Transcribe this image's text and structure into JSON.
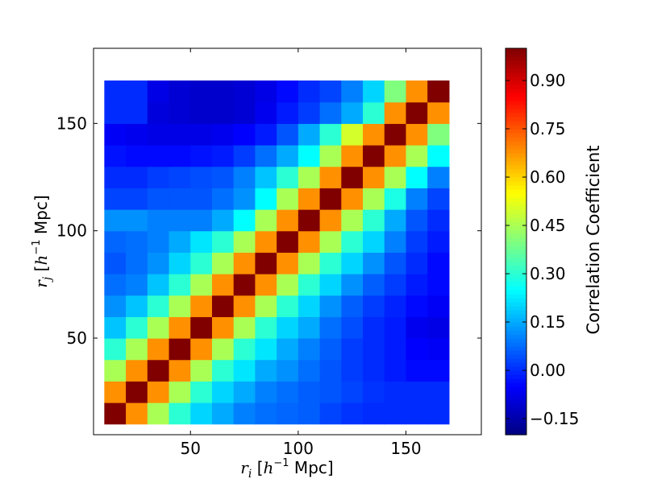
{
  "chart_data": {
    "type": "heatmap",
    "x": [
      15,
      25,
      35,
      45,
      55,
      65,
      75,
      85,
      95,
      105,
      115,
      125,
      135,
      145,
      155,
      165
    ],
    "y": [
      15,
      25,
      35,
      45,
      55,
      65,
      75,
      85,
      95,
      105,
      115,
      125,
      135,
      145,
      155,
      165
    ],
    "xlim": [
      5,
      185
    ],
    "ylim": [
      5,
      185
    ],
    "xlabel": {
      "var": "r",
      "sub": "i",
      "open": " [",
      "h": "h",
      "exp": "−1",
      "unit": " Mpc]"
    },
    "ylabel": {
      "var": "r",
      "sub": "j",
      "open": " [",
      "h": "h",
      "exp": "−1",
      "unit": " Mpc]"
    },
    "xticks": [
      {
        "value": 50,
        "label": "50"
      },
      {
        "value": 100,
        "label": "100"
      },
      {
        "value": 150,
        "label": "150"
      }
    ],
    "yticks": [
      {
        "value": 50,
        "label": "50"
      },
      {
        "value": 100,
        "label": "100"
      },
      {
        "value": 150,
        "label": "150"
      }
    ],
    "colorbar": {
      "label": "Correlation Coefficient",
      "range": [
        -0.2,
        1.0
      ],
      "colormap": "jet",
      "ticks": [
        {
          "value": -0.15,
          "label": "−0.15"
        },
        {
          "value": 0.0,
          "label": "0.00"
        },
        {
          "value": 0.15,
          "label": "0.15"
        },
        {
          "value": 0.3,
          "label": "0.30"
        },
        {
          "value": 0.45,
          "label": "0.45"
        },
        {
          "value": 0.6,
          "label": "0.60"
        },
        {
          "value": 0.75,
          "label": "0.75"
        },
        {
          "value": 0.9,
          "label": "0.90"
        }
      ]
    },
    "z": [
      [
        1.0,
        0.68,
        0.45,
        0.3,
        0.2,
        0.15,
        0.1,
        0.08,
        0.07,
        0.06,
        0.03,
        0.01,
        0.0,
        0.0,
        0.0,
        0.0
      ],
      [
        0.68,
        1.0,
        0.68,
        0.45,
        0.3,
        0.2,
        0.15,
        0.1,
        0.08,
        0.06,
        0.05,
        0.03,
        0.01,
        0.0,
        0.0,
        0.0
      ],
      [
        0.45,
        0.68,
        1.0,
        0.68,
        0.45,
        0.3,
        0.22,
        0.15,
        0.12,
        0.08,
        0.05,
        0.02,
        0.0,
        -0.02,
        -0.04,
        -0.04
      ],
      [
        0.3,
        0.45,
        0.68,
        1.0,
        0.68,
        0.45,
        0.3,
        0.22,
        0.15,
        0.1,
        0.06,
        0.02,
        0.0,
        -0.02,
        -0.05,
        -0.06
      ],
      [
        0.18,
        0.3,
        0.45,
        0.68,
        1.0,
        0.68,
        0.45,
        0.3,
        0.2,
        0.15,
        0.08,
        0.04,
        0.0,
        -0.02,
        -0.07,
        -0.08
      ],
      [
        0.12,
        0.18,
        0.3,
        0.45,
        0.68,
        1.0,
        0.68,
        0.45,
        0.3,
        0.2,
        0.12,
        0.06,
        0.02,
        -0.01,
        -0.04,
        -0.06
      ],
      [
        0.08,
        0.1,
        0.18,
        0.3,
        0.45,
        0.68,
        1.0,
        0.68,
        0.45,
        0.3,
        0.2,
        0.12,
        0.06,
        0.02,
        -0.02,
        -0.04
      ],
      [
        0.05,
        0.08,
        0.12,
        0.2,
        0.3,
        0.45,
        0.68,
        1.0,
        0.68,
        0.45,
        0.3,
        0.2,
        0.12,
        0.05,
        0.0,
        -0.04
      ],
      [
        0.07,
        0.08,
        0.1,
        0.15,
        0.22,
        0.3,
        0.45,
        0.68,
        1.0,
        0.68,
        0.45,
        0.3,
        0.2,
        0.1,
        0.02,
        -0.02
      ],
      [
        0.12,
        0.12,
        0.1,
        0.1,
        0.1,
        0.15,
        0.25,
        0.45,
        0.68,
        1.0,
        0.68,
        0.45,
        0.3,
        0.15,
        0.05,
        0.0
      ],
      [
        0.03,
        0.03,
        0.05,
        0.05,
        0.05,
        0.08,
        0.12,
        0.25,
        0.45,
        0.68,
        1.0,
        0.68,
        0.45,
        0.28,
        0.1,
        0.03
      ],
      [
        0.0,
        0.0,
        0.02,
        0.03,
        0.04,
        0.05,
        0.1,
        0.18,
        0.3,
        0.45,
        0.68,
        1.0,
        0.68,
        0.45,
        0.25,
        0.1
      ],
      [
        -0.03,
        -0.04,
        -0.04,
        -0.04,
        -0.03,
        -0.02,
        0.02,
        0.08,
        0.15,
        0.25,
        0.45,
        0.68,
        1.0,
        0.68,
        0.45,
        0.25
      ],
      [
        -0.06,
        -0.07,
        -0.08,
        -0.08,
        -0.08,
        -0.07,
        -0.05,
        -0.02,
        0.05,
        0.15,
        0.3,
        0.5,
        0.68,
        1.0,
        0.68,
        0.4
      ],
      [
        0.0,
        0.0,
        -0.09,
        -0.1,
        -0.11,
        -0.11,
        -0.1,
        -0.07,
        -0.02,
        0.02,
        0.08,
        0.15,
        0.3,
        0.68,
        1.0,
        0.68
      ],
      [
        0.0,
        0.0,
        -0.08,
        -0.1,
        -0.11,
        -0.11,
        -0.1,
        -0.08,
        -0.04,
        0.0,
        0.03,
        0.1,
        0.2,
        0.4,
        0.68,
        1.0
      ]
    ]
  }
}
